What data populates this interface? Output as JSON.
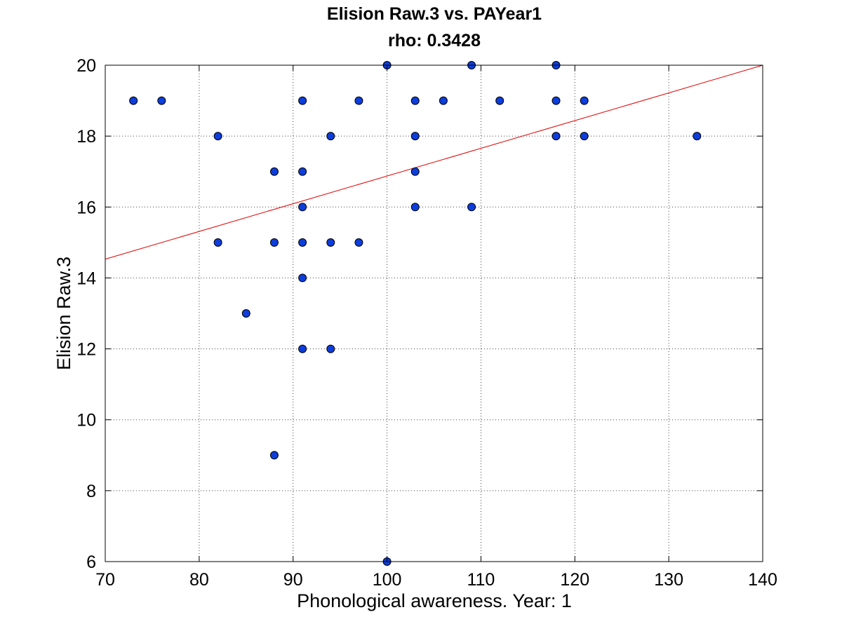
{
  "chart_data": {
    "type": "scatter",
    "title": "Elision Raw.3 vs. PAYear1",
    "subtitle": "rho: 0.3428",
    "xlabel": "Phonological awareness. Year: 1",
    "ylabel": "Elision Raw.3",
    "xlim": [
      70,
      140
    ],
    "ylim": [
      6,
      20
    ],
    "xticks": [
      70,
      80,
      90,
      100,
      110,
      120,
      130,
      140
    ],
    "yticks": [
      6,
      8,
      10,
      12,
      14,
      16,
      18,
      20
    ],
    "grid": true,
    "marker_color": "#0d3ddb",
    "marker_edge_color": "#000000",
    "fit_line_color": "#e00000",
    "points": [
      {
        "x": 73,
        "y": 19
      },
      {
        "x": 76,
        "y": 19
      },
      {
        "x": 82,
        "y": 18
      },
      {
        "x": 82,
        "y": 15
      },
      {
        "x": 85,
        "y": 13
      },
      {
        "x": 88,
        "y": 17
      },
      {
        "x": 88,
        "y": 15
      },
      {
        "x": 88,
        "y": 9
      },
      {
        "x": 91,
        "y": 19
      },
      {
        "x": 91,
        "y": 17
      },
      {
        "x": 91,
        "y": 16
      },
      {
        "x": 91,
        "y": 15
      },
      {
        "x": 91,
        "y": 14
      },
      {
        "x": 91,
        "y": 12
      },
      {
        "x": 94,
        "y": 18
      },
      {
        "x": 94,
        "y": 15
      },
      {
        "x": 94,
        "y": 12
      },
      {
        "x": 97,
        "y": 19
      },
      {
        "x": 97,
        "y": 15
      },
      {
        "x": 100,
        "y": 20
      },
      {
        "x": 100,
        "y": 6
      },
      {
        "x": 103,
        "y": 19
      },
      {
        "x": 103,
        "y": 18
      },
      {
        "x": 103,
        "y": 17
      },
      {
        "x": 103,
        "y": 16
      },
      {
        "x": 106,
        "y": 19
      },
      {
        "x": 109,
        "y": 20
      },
      {
        "x": 109,
        "y": 16
      },
      {
        "x": 112,
        "y": 19
      },
      {
        "x": 118,
        "y": 20
      },
      {
        "x": 118,
        "y": 19
      },
      {
        "x": 118,
        "y": 18
      },
      {
        "x": 121,
        "y": 19
      },
      {
        "x": 121,
        "y": 18
      },
      {
        "x": 133,
        "y": 18
      }
    ],
    "fit_line": [
      {
        "x": 70,
        "y": 14.53
      },
      {
        "x": 140,
        "y": 20.0
      }
    ]
  }
}
